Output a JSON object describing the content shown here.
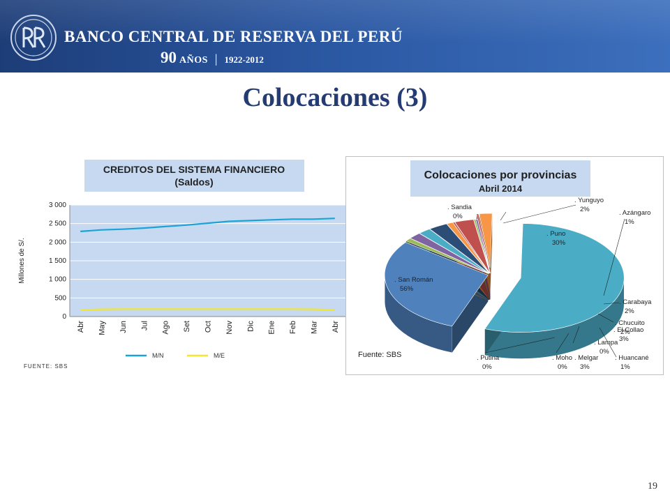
{
  "header": {
    "bank_name": "BANCO CENTRAL DE RESERVA DEL PERÚ",
    "anniversary_number": "90",
    "anniversary_word": "AÑOS",
    "anniversary_years": "1922-2012",
    "bg_color": "#254a8f"
  },
  "slide": {
    "title": "Colocaciones (3)",
    "page_number": "19"
  },
  "chart_data": [
    {
      "type": "line",
      "title": "CREDITOS DEL SISTEMA FINANCIERO",
      "subtitle": "(Saldos)",
      "ylabel": "Millones de S/.",
      "xlabel": "",
      "categories": [
        "Abr",
        "May",
        "Jun",
        "Jul",
        "Ago",
        "Set",
        "Oct",
        "Nov",
        "Dic",
        "Ene",
        "Feb",
        "Mar",
        "Abr"
      ],
      "ylim": [
        0,
        3000
      ],
      "yticks": [
        0,
        500,
        1000,
        1500,
        2000,
        2500,
        3000
      ],
      "ytick_labels": [
        "0",
        "500",
        "1 000",
        "1 500",
        "2 000",
        "2 500",
        "3 000"
      ],
      "grid": true,
      "legend_position": "bottom",
      "series": [
        {
          "name": "M/N",
          "color": "#1aa3d6",
          "values": [
            2290,
            2330,
            2350,
            2380,
            2420,
            2460,
            2510,
            2560,
            2580,
            2600,
            2620,
            2620,
            2640
          ]
        },
        {
          "name": "M/E",
          "color": "#f2e62e",
          "values": [
            175,
            195,
            200,
            200,
            200,
            200,
            200,
            200,
            200,
            200,
            200,
            195,
            180
          ]
        }
      ],
      "source": "FUENTE: SBS"
    },
    {
      "type": "pie",
      "title": "Colocaciones por provincias",
      "subtitle": "Abril 2014",
      "source": "Fuente: SBS",
      "slices": [
        {
          "label": ". San Román",
          "value": 56,
          "pct": "56%",
          "color": "#4bacc6"
        },
        {
          "label": ". Puno",
          "value": 30,
          "pct": "30%",
          "color": "#4f81bd"
        },
        {
          "label": ". Azángaro",
          "value": 1,
          "pct": "1%",
          "color": "#9bbb59"
        },
        {
          "label": ". Carabaya",
          "value": 2,
          "pct": "2%",
          "color": "#8064a2"
        },
        {
          "label": ". Chucuito",
          "value": 2,
          "pct": "2%",
          "color": "#4bacc6"
        },
        {
          "label": ". El Collao",
          "value": 3,
          "pct": "3%",
          "color": "#2c4d75"
        },
        {
          "label": ". Huancané",
          "value": 1,
          "pct": "1%",
          "color": "#f79646"
        },
        {
          "label": ". Lampa",
          "value": 0,
          "pct": "0%",
          "color": "#c0504d"
        },
        {
          "label": ". Melgar",
          "value": 3,
          "pct": "3%",
          "color": "#c0504d"
        },
        {
          "label": ". Moho",
          "value": 0,
          "pct": "0%",
          "color": "#9bbb59"
        },
        {
          "label": ". Putina",
          "value": 0,
          "pct": "0%",
          "color": "#8064a2"
        },
        {
          "label": ". Sandia",
          "value": 0,
          "pct": "0%",
          "color": "#c0504d"
        },
        {
          "label": ". Yunguyo",
          "value": 2,
          "pct": "2%",
          "color": "#f79646"
        }
      ]
    }
  ]
}
